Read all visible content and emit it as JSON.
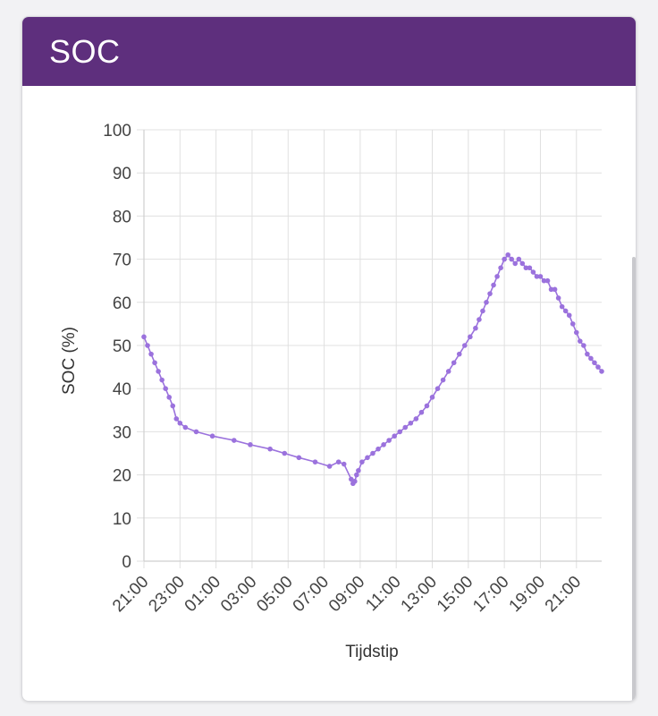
{
  "card": {
    "title": "SOC"
  },
  "colors": {
    "header": "#5e2f7d",
    "series": "#9b72dd",
    "grid": "#e0e0e0"
  },
  "chart_data": {
    "type": "line",
    "title": "",
    "xlabel": "Tijdstip",
    "ylabel": "SOC (%)",
    "ylim": [
      0,
      100
    ],
    "yticks": [
      0,
      10,
      20,
      30,
      40,
      50,
      60,
      70,
      80,
      90,
      100
    ],
    "xlim": [
      "21:00",
      "22:25 (next day)"
    ],
    "xtick_labels": [
      "21:00",
      "23:00",
      "01:00",
      "03:00",
      "05:00",
      "07:00",
      "09:00",
      "11:00",
      "13:00",
      "15:00",
      "17:00",
      "19:00",
      "21:00"
    ],
    "grid": true,
    "series": [
      {
        "name": "",
        "x_hours_from_first_tick": [
          0,
          0.2,
          0.4,
          0.6,
          0.8,
          1.0,
          1.2,
          1.4,
          1.6,
          1.8,
          2.0,
          2.3,
          2.9,
          3.8,
          5.0,
          5.9,
          7.0,
          7.8,
          8.6,
          9.5,
          10.3,
          10.8,
          11.1,
          11.5,
          11.6,
          11.7,
          11.8,
          11.9,
          12.1,
          12.4,
          12.7,
          13.0,
          13.3,
          13.6,
          13.9,
          14.2,
          14.5,
          14.8,
          15.1,
          15.4,
          15.7,
          16.0,
          16.3,
          16.6,
          16.9,
          17.2,
          17.5,
          17.8,
          18.1,
          18.4,
          18.6,
          18.8,
          19.0,
          19.2,
          19.4,
          19.6,
          19.8,
          20.0,
          20.2,
          20.4,
          20.6,
          20.8,
          21.0,
          21.2,
          21.4,
          21.6,
          21.8,
          22.0,
          22.2,
          22.4,
          22.6,
          22.8,
          23.0,
          23.2,
          23.4,
          23.6,
          23.8,
          24.0,
          24.2,
          24.4,
          24.6,
          24.8,
          25.0,
          25.2,
          25.4
        ],
        "y": [
          52,
          50,
          48,
          46,
          44,
          42,
          40,
          38,
          36,
          33,
          32,
          31,
          30,
          29,
          28,
          27,
          26,
          25,
          24,
          23,
          22,
          23,
          22.5,
          19,
          18,
          18.5,
          20,
          21,
          23,
          24,
          25,
          26,
          27,
          28,
          29,
          30,
          31,
          32,
          33,
          34.5,
          36,
          38,
          40,
          42,
          44,
          46,
          48,
          50,
          52,
          54,
          56,
          58,
          60,
          62,
          64,
          66,
          68,
          70,
          71,
          70,
          69,
          70,
          69,
          68,
          68,
          67,
          66,
          66,
          65,
          65,
          63,
          63,
          61,
          59,
          58,
          57,
          55,
          53,
          51,
          50,
          48,
          47,
          46,
          45,
          44
        ]
      }
    ]
  }
}
